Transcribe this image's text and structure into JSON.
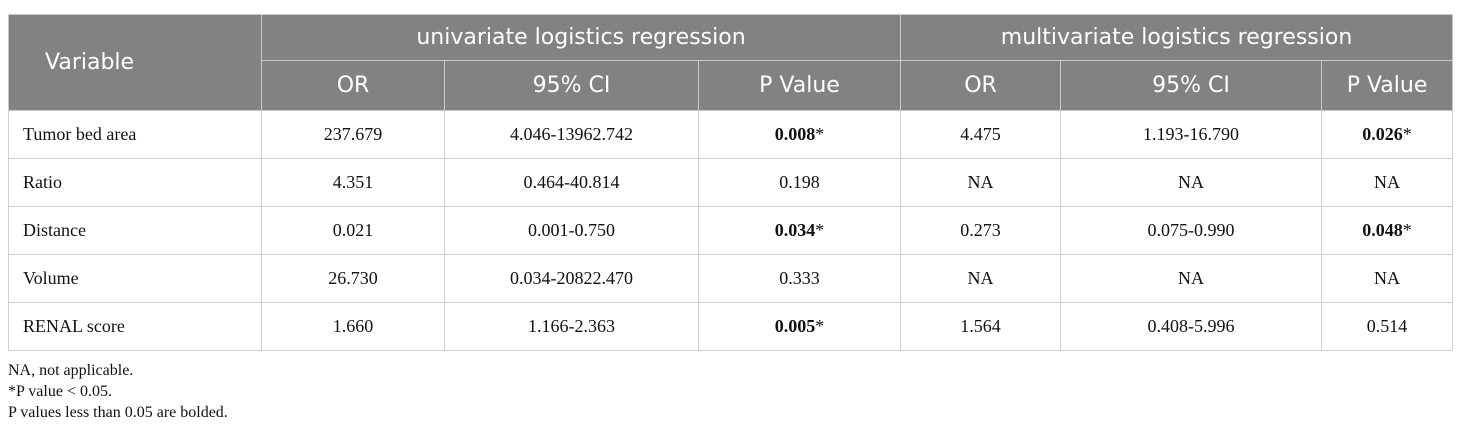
{
  "header": {
    "variable": "Variable",
    "uni_group": "univariate logistics regression",
    "multi_group": "multivariate logistics regression",
    "or": "OR",
    "ci": "95% CI",
    "p": "P Value"
  },
  "rows": [
    {
      "label": "Tumor bed area",
      "u_or": "237.679",
      "u_ci": "4.046-13962.742",
      "u_p": "0.008",
      "u_star": "*",
      "m_or": "4.475",
      "m_ci": "1.193-16.790",
      "m_p": "0.026",
      "m_star": "*"
    },
    {
      "label": "Ratio",
      "u_or": "4.351",
      "u_ci": "0.464-40.814",
      "u_p": "0.198",
      "u_star": "",
      "m_or": "NA",
      "m_ci": "NA",
      "m_p": "NA",
      "m_star": ""
    },
    {
      "label": "Distance",
      "u_or": "0.021",
      "u_ci": "0.001-0.750",
      "u_p": "0.034",
      "u_star": "*",
      "m_or": "0.273",
      "m_ci": "0.075-0.990",
      "m_p": "0.048",
      "m_star": "*"
    },
    {
      "label": "Volume",
      "u_or": "26.730",
      "u_ci": "0.034-20822.470",
      "u_p": "0.333",
      "u_star": "",
      "m_or": "NA",
      "m_ci": "NA",
      "m_p": "NA",
      "m_star": ""
    },
    {
      "label": "RENAL score",
      "u_or": "1.660",
      "u_ci": "1.166-2.363",
      "u_p": "0.005",
      "u_star": "*",
      "m_or": "1.564",
      "m_ci": "0.408-5.996",
      "m_p": "0.514",
      "m_star": ""
    }
  ],
  "footnotes": [
    "NA, not applicable.",
    "*P value < 0.05.",
    "P values less than 0.05 are bolded."
  ],
  "bold_p_cells": [
    "0-u_p",
    "0-m_p",
    "2-u_p",
    "2-m_p",
    "4-u_p"
  ]
}
